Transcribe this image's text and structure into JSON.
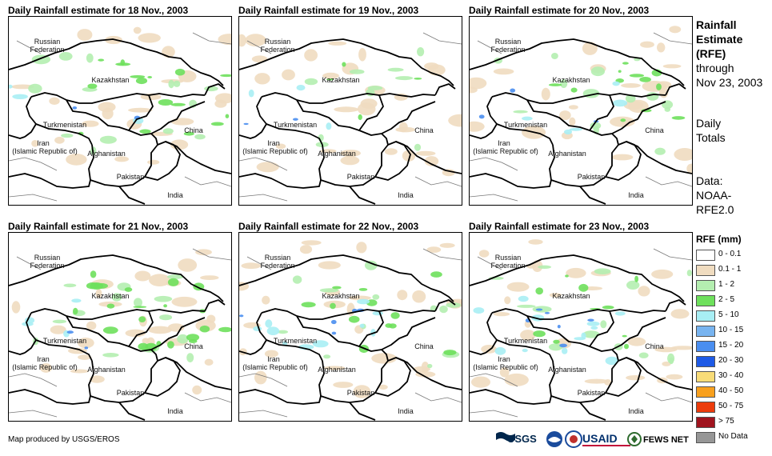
{
  "panels": [
    {
      "title": "Daily Rainfall estimate for 18 Nov., 2003"
    },
    {
      "title": "Daily Rainfall estimate for 19 Nov., 2003"
    },
    {
      "title": "Daily Rainfall estimate for 20 Nov., 2003"
    },
    {
      "title": "Daily Rainfall estimate for 21 Nov., 2003"
    },
    {
      "title": "Daily Rainfall estimate for 22 Nov., 2003"
    },
    {
      "title": "Daily Rainfall estimate for 23 Nov., 2003"
    }
  ],
  "map_labels": {
    "russia_1": "Russian",
    "russia_2": "Federation",
    "kazakhstan": "Kazakhstan",
    "turkmenistan": "Turkmenistan",
    "iran_1": "Iran",
    "iran_2": "(Islamic Republic of)",
    "afghanistan": "Afghanistan",
    "pakistan": "Pakistan",
    "china": "China",
    "india": "India"
  },
  "sidebar": {
    "line1": "Rainfall",
    "line2": "Estimate",
    "line3": "(RFE)",
    "line4": "through",
    "line5": "Nov 23, 2003",
    "line6": "Daily",
    "line7": "Totals",
    "line8": "Data:",
    "line9": "NOAA-",
    "line10": "RFE2.0"
  },
  "legend": {
    "title": "RFE (mm)",
    "items": [
      {
        "label": "0 - 0.1",
        "color": "#ffffff"
      },
      {
        "label": "0.1 - 1",
        "color": "#f0dcc0"
      },
      {
        "label": "1 - 2",
        "color": "#b4eeb0"
      },
      {
        "label": "2 - 5",
        "color": "#6ee05c"
      },
      {
        "label": "5 - 10",
        "color": "#a8eef4"
      },
      {
        "label": "10 - 15",
        "color": "#78b4f0"
      },
      {
        "label": "15 - 20",
        "color": "#4a8ef0"
      },
      {
        "label": "20 - 30",
        "color": "#1e5ae6"
      },
      {
        "label": "30 - 40",
        "color": "#f8dc78"
      },
      {
        "label": "40 - 50",
        "color": "#f8a01e"
      },
      {
        "label": "50 - 75",
        "color": "#ec3c0c"
      },
      {
        "label": "> 75",
        "color": "#a0141e"
      },
      {
        "label": "No Data",
        "color": "#969696"
      }
    ]
  },
  "credit": "Map produced by USGS/EROS",
  "logos": {
    "usgs": "USGS",
    "usaid": "USAID",
    "fews": "FEWS NET"
  }
}
